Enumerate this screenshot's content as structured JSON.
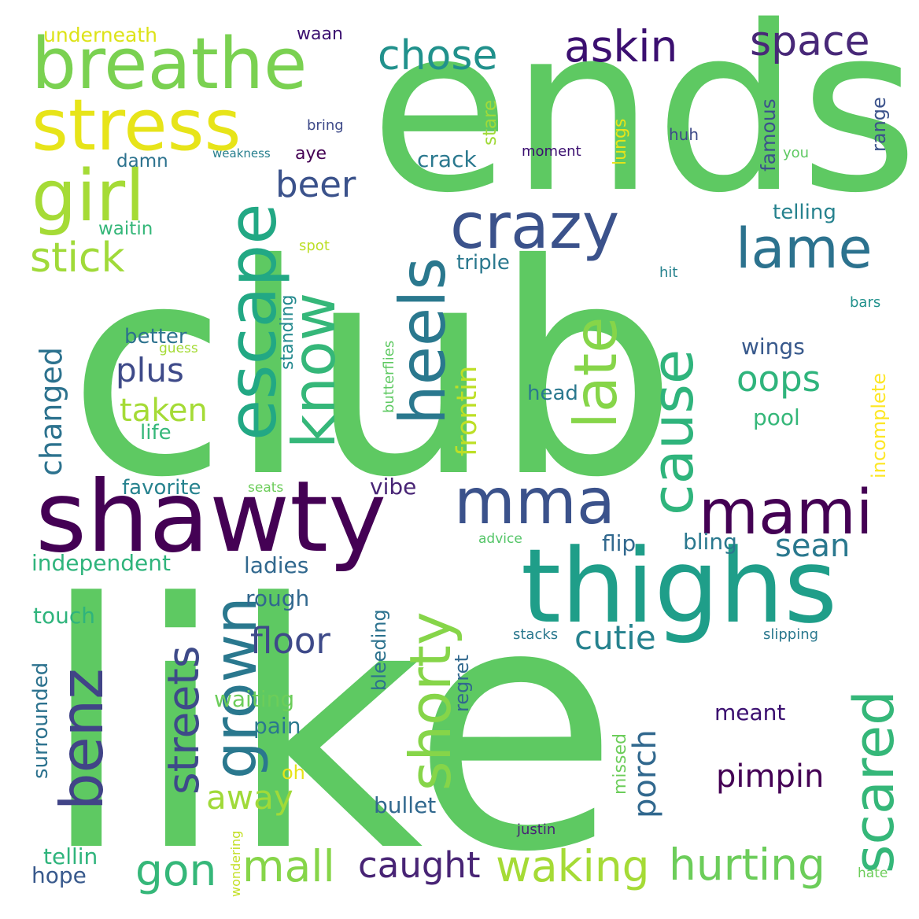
{
  "words": [
    {
      "text": "club",
      "color": "#5ec962"
    },
    {
      "text": "like",
      "color": "#5ec962"
    },
    {
      "text": "ends",
      "color": "#5ec962"
    },
    {
      "text": "shawty",
      "color": "#440154"
    },
    {
      "text": "thighs",
      "color": "#1f9e89"
    },
    {
      "text": "breathe",
      "color": "#7ad151"
    },
    {
      "text": "stress",
      "color": "#e7e419"
    },
    {
      "text": "girl",
      "color": "#a5db36"
    },
    {
      "text": "escape",
      "color": "#22a884"
    },
    {
      "text": "know",
      "color": "#35b779"
    },
    {
      "text": "heels",
      "color": "#2a788e"
    },
    {
      "text": "crazy",
      "color": "#3b528b"
    },
    {
      "text": "late",
      "color": "#86d549"
    },
    {
      "text": "cause",
      "color": "#2fb47c"
    },
    {
      "text": "lame",
      "color": "#2c728e"
    },
    {
      "text": "mma",
      "color": "#3b528b"
    },
    {
      "text": "mami",
      "color": "#440154"
    },
    {
      "text": "shorty",
      "color": "#86d549"
    },
    {
      "text": "scared",
      "color": "#35b779"
    },
    {
      "text": "benz",
      "color": "#414487"
    },
    {
      "text": "grown",
      "color": "#2a788e"
    },
    {
      "text": "streets",
      "color": "#3e4a89"
    },
    {
      "text": "askin",
      "color": "#3b0f70"
    },
    {
      "text": "space",
      "color": "#482878"
    },
    {
      "text": "chose",
      "color": "#21918c"
    },
    {
      "text": "stick",
      "color": "#a0da39"
    },
    {
      "text": "beer",
      "color": "#3b528b"
    },
    {
      "text": "plus",
      "color": "#3e4a89"
    },
    {
      "text": "taken",
      "color": "#a5db36"
    },
    {
      "text": "changed",
      "color": "#2c728e"
    },
    {
      "text": "frontin",
      "color": "#bddf26"
    },
    {
      "text": "oops",
      "color": "#2fb47c"
    },
    {
      "text": "wings",
      "color": "#38598c"
    },
    {
      "text": "porch",
      "color": "#31688e"
    },
    {
      "text": "cutie",
      "color": "#26828e"
    },
    {
      "text": "sean",
      "color": "#2a788e"
    },
    {
      "text": "floor",
      "color": "#3e4a89"
    },
    {
      "text": "pimpin",
      "color": "#440154"
    },
    {
      "text": "gon",
      "color": "#35b779"
    },
    {
      "text": "mall",
      "color": "#86d549"
    },
    {
      "text": "caught",
      "color": "#482475"
    },
    {
      "text": "waking",
      "color": "#a5db36"
    },
    {
      "text": "hurting",
      "color": "#6ccd5a"
    },
    {
      "text": "away",
      "color": "#a0da39"
    },
    {
      "text": "underneath",
      "color": "#dde318"
    },
    {
      "text": "waan",
      "color": "#3b0f70"
    },
    {
      "text": "bring",
      "color": "#3e4a89"
    },
    {
      "text": "weakness",
      "color": "#277f8e"
    },
    {
      "text": "aye",
      "color": "#440154"
    },
    {
      "text": "damn",
      "color": "#2c728e"
    },
    {
      "text": "waitin",
      "color": "#35b779"
    },
    {
      "text": "crack",
      "color": "#2a788e"
    },
    {
      "text": "stare",
      "color": "#a0da39"
    },
    {
      "text": "lungs",
      "color": "#e7e419"
    },
    {
      "text": "moment",
      "color": "#3b0f70"
    },
    {
      "text": "huh",
      "color": "#3e4a89"
    },
    {
      "text": "famous",
      "color": "#3b528b"
    },
    {
      "text": "you",
      "color": "#5ec962"
    },
    {
      "text": "range",
      "color": "#3b528b"
    },
    {
      "text": "telling",
      "color": "#26828e"
    },
    {
      "text": "spot",
      "color": "#bddf26"
    },
    {
      "text": "triple",
      "color": "#2a788e"
    },
    {
      "text": "hit",
      "color": "#26828e"
    },
    {
      "text": "bars",
      "color": "#21918c"
    },
    {
      "text": "better",
      "color": "#2c728e"
    },
    {
      "text": "guess",
      "color": "#a5db36"
    },
    {
      "text": "standing",
      "color": "#23898e"
    },
    {
      "text": "butterflies",
      "color": "#5ec962"
    },
    {
      "text": "incomplete",
      "color": "#fde725"
    },
    {
      "text": "head",
      "color": "#2a788e"
    },
    {
      "text": "pool",
      "color": "#35b779"
    },
    {
      "text": "life",
      "color": "#35b779"
    },
    {
      "text": "favorite",
      "color": "#26828e"
    },
    {
      "text": "seats",
      "color": "#6ccd5a"
    },
    {
      "text": "vibe",
      "color": "#482475"
    },
    {
      "text": "advice",
      "color": "#54c568"
    },
    {
      "text": "flip",
      "color": "#31688e"
    },
    {
      "text": "bling",
      "color": "#2a788e"
    },
    {
      "text": "independent",
      "color": "#2fb47c"
    },
    {
      "text": "ladies",
      "color": "#31688e"
    },
    {
      "text": "rough",
      "color": "#31688e"
    },
    {
      "text": "bleeding",
      "color": "#2c728e"
    },
    {
      "text": "touch",
      "color": "#2fb47c"
    },
    {
      "text": "stacks",
      "color": "#2a788e"
    },
    {
      "text": "slipping",
      "color": "#2a788e"
    },
    {
      "text": "surrounded",
      "color": "#2c728e"
    },
    {
      "text": "regret",
      "color": "#31688e"
    },
    {
      "text": "waiting",
      "color": "#6ccd5a"
    },
    {
      "text": "pain",
      "color": "#2a788e"
    },
    {
      "text": "missed",
      "color": "#6ccd5a"
    },
    {
      "text": "meant",
      "color": "#3b0f70"
    },
    {
      "text": "oh",
      "color": "#e7e419"
    },
    {
      "text": "bullet",
      "color": "#31688e"
    },
    {
      "text": "justin",
      "color": "#482475"
    },
    {
      "text": "wondering",
      "color": "#c2df23"
    },
    {
      "text": "tellin",
      "color": "#2fb47c"
    },
    {
      "text": "hope",
      "color": "#38598c"
    },
    {
      "text": "hate",
      "color": "#6ccd5a"
    }
  ]
}
